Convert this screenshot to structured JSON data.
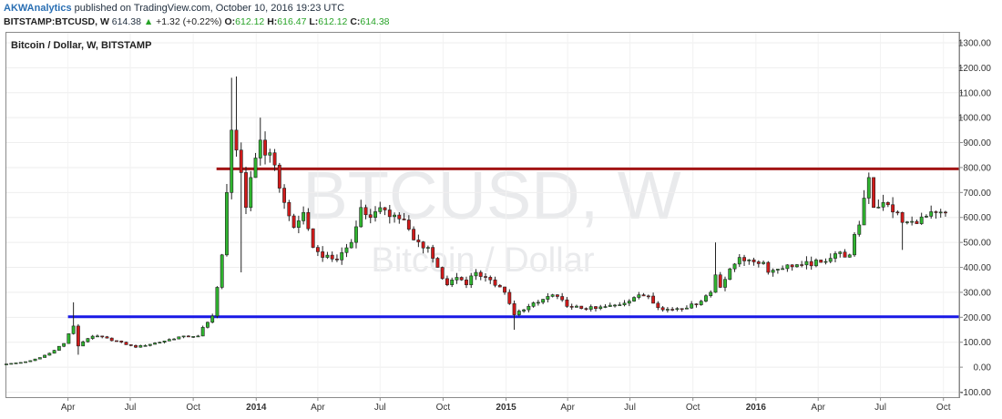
{
  "header": {
    "author": "AKWAnalytics",
    "published_text": "published on TradingView.com, October 10, 2016 19:23 UTC",
    "symbol": "BITSTAMP:BTCUSD, W",
    "last": "614.38",
    "change": "+1.32 (+0.22%)",
    "open_label": "O:",
    "open": "612.12",
    "high_label": "H:",
    "high": "616.47",
    "low_label": "L:",
    "low": "612.12",
    "close_label": "C:",
    "close": "614.38",
    "up_icon": "triangle-up-icon"
  },
  "chart_title": "Bitcoin / Dollar, W, BITSTAMP",
  "watermark": {
    "symbol": "BTCUSD, W",
    "name": "Bitcoin / Dollar"
  },
  "colors": {
    "up": "#2fb52f",
    "down": "#d11a1a",
    "resistance": "#a31515",
    "support": "#1919e6"
  },
  "chart_data": {
    "type": "candlestick",
    "title": "Bitcoin / Dollar, W, BITSTAMP",
    "ylim": [
      -120,
      1340
    ],
    "y_ticks": [
      "1300.00",
      "1200.00",
      "1100.00",
      "1000.00",
      "900.00",
      "800.00",
      "700.00",
      "600.00",
      "500.00",
      "400.00",
      "300.00",
      "200.00",
      "100.00",
      "0.00",
      "-100.00"
    ],
    "y_tick_values": [
      1300,
      1200,
      1100,
      1000,
      900,
      800,
      700,
      600,
      500,
      400,
      300,
      200,
      100,
      0,
      -100
    ],
    "x_ticks": [
      {
        "label": "Apr",
        "date": "2013-04-01",
        "bold": false
      },
      {
        "label": "Jul",
        "date": "2013-07-01",
        "bold": false
      },
      {
        "label": "Oct",
        "date": "2013-10-01",
        "bold": false
      },
      {
        "label": "2014",
        "date": "2014-01-01",
        "bold": true
      },
      {
        "label": "Apr",
        "date": "2014-04-01",
        "bold": false
      },
      {
        "label": "Jul",
        "date": "2014-07-01",
        "bold": false
      },
      {
        "label": "Oct",
        "date": "2014-10-01",
        "bold": false
      },
      {
        "label": "2015",
        "date": "2015-01-01",
        "bold": true
      },
      {
        "label": "Apr",
        "date": "2015-04-01",
        "bold": false
      },
      {
        "label": "Jul",
        "date": "2015-07-01",
        "bold": false
      },
      {
        "label": "Oct",
        "date": "2015-10-01",
        "bold": false
      },
      {
        "label": "2016",
        "date": "2016-01-01",
        "bold": true
      },
      {
        "label": "Apr",
        "date": "2016-04-01",
        "bold": false
      },
      {
        "label": "Jul",
        "date": "2016-07-01",
        "bold": false
      },
      {
        "label": "Oct",
        "date": "2016-10-01",
        "bold": false
      }
    ],
    "x_range": [
      "2013-01-01",
      "2016-10-24"
    ],
    "horizontal_lines": [
      {
        "name": "resistance",
        "value": 795,
        "start": "2013-11-04",
        "color": "#a31515"
      },
      {
        "name": "support",
        "value": 202,
        "start": "2013-04-01",
        "color": "#1919e6"
      }
    ],
    "last_price": 614.38,
    "anchors": [
      {
        "date": "2013-01-01",
        "close": 13
      },
      {
        "date": "2013-02-01",
        "close": 22
      },
      {
        "date": "2013-03-01",
        "close": 48
      },
      {
        "date": "2013-03-25",
        "close": 95
      },
      {
        "date": "2013-04-08",
        "close": 165,
        "high": 260
      },
      {
        "date": "2013-04-15",
        "close": 85,
        "low": 50
      },
      {
        "date": "2013-04-29",
        "close": 115
      },
      {
        "date": "2013-05-13",
        "close": 125
      },
      {
        "date": "2013-06-10",
        "close": 105
      },
      {
        "date": "2013-07-08",
        "close": 80
      },
      {
        "date": "2013-08-12",
        "close": 100
      },
      {
        "date": "2013-09-16",
        "close": 125
      },
      {
        "date": "2013-10-07",
        "close": 125
      },
      {
        "date": "2013-10-21",
        "close": 180
      },
      {
        "date": "2013-10-28",
        "close": 205
      },
      {
        "date": "2013-11-04",
        "close": 320
      },
      {
        "date": "2013-11-11",
        "close": 450
      },
      {
        "date": "2013-11-18",
        "close": 700
      },
      {
        "date": "2013-11-25",
        "close": 950,
        "high": 1160
      },
      {
        "date": "2013-12-02",
        "close": 870,
        "high": 1165
      },
      {
        "date": "2013-12-09",
        "close": 780,
        "low": 380
      },
      {
        "date": "2013-12-16",
        "close": 640
      },
      {
        "date": "2013-12-23",
        "close": 760
      },
      {
        "date": "2014-01-06",
        "close": 910,
        "high": 1000
      },
      {
        "date": "2014-01-27",
        "close": 810
      },
      {
        "date": "2014-02-10",
        "close": 660
      },
      {
        "date": "2014-02-24",
        "close": 560
      },
      {
        "date": "2014-03-10",
        "close": 620
      },
      {
        "date": "2014-03-24",
        "close": 480
      },
      {
        "date": "2014-04-07",
        "close": 440
      },
      {
        "date": "2014-04-28",
        "close": 430
      },
      {
        "date": "2014-05-19",
        "close": 500
      },
      {
        "date": "2014-06-02",
        "close": 640
      },
      {
        "date": "2014-06-16",
        "close": 600
      },
      {
        "date": "2014-07-07",
        "close": 630
      },
      {
        "date": "2014-08-04",
        "close": 590
      },
      {
        "date": "2014-08-18",
        "close": 510
      },
      {
        "date": "2014-09-08",
        "close": 480
      },
      {
        "date": "2014-09-22",
        "close": 400
      },
      {
        "date": "2014-10-06",
        "close": 330
      },
      {
        "date": "2014-10-20",
        "close": 360
      },
      {
        "date": "2014-11-03",
        "close": 330
      },
      {
        "date": "2014-11-17",
        "close": 380
      },
      {
        "date": "2014-12-08",
        "close": 350
      },
      {
        "date": "2014-12-29",
        "close": 300
      },
      {
        "date": "2015-01-12",
        "close": 210,
        "low": 150
      },
      {
        "date": "2015-01-26",
        "close": 230
      },
      {
        "date": "2015-02-16",
        "close": 260
      },
      {
        "date": "2015-03-09",
        "close": 290
      },
      {
        "date": "2015-04-06",
        "close": 240
      },
      {
        "date": "2015-05-11",
        "close": 235
      },
      {
        "date": "2015-06-15",
        "close": 250
      },
      {
        "date": "2015-07-13",
        "close": 290
      },
      {
        "date": "2015-07-27",
        "close": 285
      },
      {
        "date": "2015-08-17",
        "close": 230
      },
      {
        "date": "2015-09-07",
        "close": 235
      },
      {
        "date": "2015-10-05",
        "close": 250
      },
      {
        "date": "2015-10-26",
        "close": 300
      },
      {
        "date": "2015-11-02",
        "close": 370,
        "high": 500
      },
      {
        "date": "2015-11-09",
        "close": 320
      },
      {
        "date": "2015-12-07",
        "close": 440
      },
      {
        "date": "2015-12-21",
        "close": 430
      },
      {
        "date": "2016-01-11",
        "close": 420
      },
      {
        "date": "2016-01-18",
        "close": 380
      },
      {
        "date": "2016-02-15",
        "close": 410
      },
      {
        "date": "2016-03-07",
        "close": 410
      },
      {
        "date": "2016-04-04",
        "close": 420
      },
      {
        "date": "2016-04-25",
        "close": 455
      },
      {
        "date": "2016-05-16",
        "close": 450
      },
      {
        "date": "2016-05-30",
        "close": 570
      },
      {
        "date": "2016-06-13",
        "close": 760,
        "high": 780
      },
      {
        "date": "2016-06-20",
        "close": 640
      },
      {
        "date": "2016-07-04",
        "close": 660
      },
      {
        "date": "2016-07-25",
        "close": 620
      },
      {
        "date": "2016-08-01",
        "close": 580,
        "low": 470
      },
      {
        "date": "2016-08-22",
        "close": 575
      },
      {
        "date": "2016-09-05",
        "close": 605
      },
      {
        "date": "2016-10-10",
        "close": 614.38
      }
    ]
  }
}
